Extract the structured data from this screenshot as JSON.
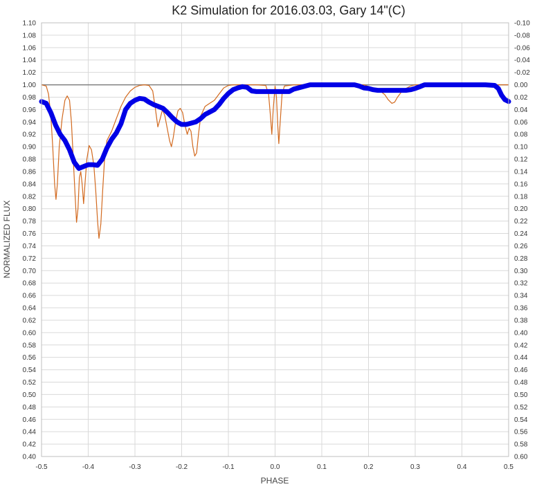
{
  "chart_data": {
    "type": "line",
    "title": "K2 Simulation for 2016.03.03, Gary 14\"(C)",
    "xlabel": "PHASE",
    "ylabel": "NORMALIZED FLUX",
    "xlim": [
      -0.5,
      0.5
    ],
    "ylim": [
      0.4,
      1.1
    ],
    "y2lim": [
      0.6,
      -0.1
    ],
    "x_ticks": [
      -0.5,
      -0.4,
      -0.3,
      -0.2,
      -0.1,
      0.0,
      0.1,
      0.2,
      0.3,
      0.4,
      0.5
    ],
    "x_tick_labels": [
      "-0.5",
      "-0.4",
      "-0.3",
      "-0.2",
      "-0.1",
      "0.0",
      "0.1",
      "0.2",
      "0.3",
      "0.4",
      "0.5"
    ],
    "y_ticks": [
      0.4,
      0.42,
      0.44,
      0.46,
      0.48,
      0.5,
      0.52,
      0.54,
      0.56,
      0.58,
      0.6,
      0.62,
      0.64,
      0.66,
      0.68,
      0.7,
      0.72,
      0.74,
      0.76,
      0.78,
      0.8,
      0.82,
      0.84,
      0.86,
      0.88,
      0.9,
      0.92,
      0.94,
      0.96,
      0.98,
      1.0,
      1.02,
      1.04,
      1.06,
      1.08,
      1.1
    ],
    "y_tick_labels": [
      "0.40",
      "0.42",
      "0.44",
      "0.46",
      "0.48",
      "0.50",
      "0.52",
      "0.54",
      "0.56",
      "0.58",
      "0.60",
      "0.62",
      "0.64",
      "0.66",
      "0.68",
      "0.70",
      "0.72",
      "0.74",
      "0.76",
      "0.78",
      "0.80",
      "0.82",
      "0.84",
      "0.86",
      "0.88",
      "0.90",
      "0.92",
      "0.94",
      "0.96",
      "0.98",
      "1.00",
      "1.02",
      "1.04",
      "1.06",
      "1.08",
      "1.10"
    ],
    "y2_ticks": [
      0.6,
      0.58,
      0.56,
      0.54,
      0.52,
      0.5,
      0.48,
      0.46,
      0.44,
      0.42,
      0.4,
      0.38,
      0.36,
      0.34,
      0.32,
      0.3,
      0.28,
      0.26,
      0.24,
      0.22,
      0.2,
      0.18,
      0.16,
      0.14,
      0.12,
      0.1,
      0.08,
      0.06,
      0.04,
      0.02,
      0.0,
      -0.02,
      -0.04,
      -0.06,
      -0.08,
      -0.1
    ],
    "y2_tick_labels": [
      "0.60",
      "0.58",
      "0.56",
      "0.54",
      "0.52",
      "0.50",
      "0.48",
      "0.46",
      "0.44",
      "0.42",
      "0.40",
      "0.38",
      "0.36",
      "0.34",
      "0.32",
      "0.30",
      "0.28",
      "0.26",
      "0.24",
      "0.22",
      "0.20",
      "0.18",
      "0.16",
      "0.14",
      "0.12",
      "0.10",
      "0.08",
      "0.06",
      "0.04",
      "0.02",
      "0.00",
      "-0.02",
      "-0.04",
      "-0.06",
      "-0.08",
      "-0.10"
    ],
    "grid": {
      "x": true,
      "y": true
    },
    "legend": "none",
    "reference_line": {
      "y": 1.0,
      "color": "#808080"
    },
    "series": [
      {
        "color": "#D2691E",
        "style": "thin-line",
        "points": [
          [
            -0.5,
            1.0
          ],
          [
            -0.49,
            0.998
          ],
          [
            -0.485,
            0.985
          ],
          [
            -0.48,
            0.95
          ],
          [
            -0.476,
            0.9
          ],
          [
            -0.472,
            0.84
          ],
          [
            -0.469,
            0.815
          ],
          [
            -0.466,
            0.84
          ],
          [
            -0.462,
            0.9
          ],
          [
            -0.456,
            0.945
          ],
          [
            -0.45,
            0.975
          ],
          [
            -0.445,
            0.982
          ],
          [
            -0.44,
            0.975
          ],
          [
            -0.436,
            0.94
          ],
          [
            -0.432,
            0.88
          ],
          [
            -0.428,
            0.82
          ],
          [
            -0.425,
            0.778
          ],
          [
            -0.422,
            0.8
          ],
          [
            -0.419,
            0.85
          ],
          [
            -0.416,
            0.86
          ],
          [
            -0.413,
            0.84
          ],
          [
            -0.41,
            0.808
          ],
          [
            -0.407,
            0.84
          ],
          [
            -0.403,
            0.88
          ],
          [
            -0.398,
            0.902
          ],
          [
            -0.393,
            0.895
          ],
          [
            -0.388,
            0.87
          ],
          [
            -0.384,
            0.83
          ],
          [
            -0.38,
            0.78
          ],
          [
            -0.377,
            0.752
          ],
          [
            -0.373,
            0.775
          ],
          [
            -0.369,
            0.83
          ],
          [
            -0.365,
            0.88
          ],
          [
            -0.36,
            0.91
          ],
          [
            -0.35,
            0.925
          ],
          [
            -0.34,
            0.945
          ],
          [
            -0.33,
            0.965
          ],
          [
            -0.32,
            0.98
          ],
          [
            -0.31,
            0.99
          ],
          [
            -0.3,
            0.996
          ],
          [
            -0.29,
            0.999
          ],
          [
            -0.28,
            1.0
          ],
          [
            -0.27,
            0.999
          ],
          [
            -0.262,
            0.99
          ],
          [
            -0.256,
            0.96
          ],
          [
            -0.251,
            0.932
          ],
          [
            -0.246,
            0.945
          ],
          [
            -0.241,
            0.96
          ],
          [
            -0.236,
            0.95
          ],
          [
            -0.231,
            0.93
          ],
          [
            -0.226,
            0.91
          ],
          [
            -0.222,
            0.9
          ],
          [
            -0.218,
            0.915
          ],
          [
            -0.213,
            0.94
          ],
          [
            -0.208,
            0.958
          ],
          [
            -0.203,
            0.962
          ],
          [
            -0.198,
            0.955
          ],
          [
            -0.193,
            0.935
          ],
          [
            -0.188,
            0.92
          ],
          [
            -0.184,
            0.93
          ],
          [
            -0.18,
            0.925
          ],
          [
            -0.176,
            0.9
          ],
          [
            -0.172,
            0.885
          ],
          [
            -0.168,
            0.89
          ],
          [
            -0.164,
            0.92
          ],
          [
            -0.159,
            0.95
          ],
          [
            -0.15,
            0.965
          ],
          [
            -0.14,
            0.97
          ],
          [
            -0.13,
            0.975
          ],
          [
            -0.12,
            0.985
          ],
          [
            -0.11,
            0.995
          ],
          [
            -0.1,
            0.999
          ],
          [
            -0.09,
            1.0
          ],
          [
            -0.06,
            1.0
          ],
          [
            -0.04,
            1.0
          ],
          [
            -0.02,
            0.999
          ],
          [
            -0.014,
            0.985
          ],
          [
            -0.01,
            0.95
          ],
          [
            -0.007,
            0.92
          ],
          [
            -0.004,
            0.96
          ],
          [
            0.0,
            0.998
          ],
          [
            0.003,
            0.98
          ],
          [
            0.006,
            0.93
          ],
          [
            0.008,
            0.905
          ],
          [
            0.011,
            0.94
          ],
          [
            0.015,
            0.985
          ],
          [
            0.02,
            0.998
          ],
          [
            0.03,
            0.999
          ],
          [
            0.04,
            1.0
          ],
          [
            0.1,
            1.0
          ],
          [
            0.15,
            1.0
          ],
          [
            0.19,
            1.0
          ],
          [
            0.205,
            0.996
          ],
          [
            0.215,
            0.994
          ],
          [
            0.225,
            0.99
          ],
          [
            0.235,
            0.984
          ],
          [
            0.242,
            0.976
          ],
          [
            0.25,
            0.97
          ],
          [
            0.256,
            0.972
          ],
          [
            0.262,
            0.98
          ],
          [
            0.27,
            0.988
          ],
          [
            0.28,
            0.994
          ],
          [
            0.29,
            0.998
          ],
          [
            0.3,
            1.0
          ],
          [
            0.5,
            1.0
          ]
        ]
      },
      {
        "color": "#0000E6",
        "style": "thick-line",
        "points": [
          [
            -0.5,
            0.973
          ],
          [
            -0.49,
            0.97
          ],
          [
            -0.48,
            0.955
          ],
          [
            -0.47,
            0.935
          ],
          [
            -0.46,
            0.92
          ],
          [
            -0.45,
            0.91
          ],
          [
            -0.44,
            0.895
          ],
          [
            -0.43,
            0.875
          ],
          [
            -0.42,
            0.865
          ],
          [
            -0.41,
            0.868
          ],
          [
            -0.4,
            0.871
          ],
          [
            -0.39,
            0.871
          ],
          [
            -0.38,
            0.87
          ],
          [
            -0.37,
            0.88
          ],
          [
            -0.36,
            0.898
          ],
          [
            -0.35,
            0.912
          ],
          [
            -0.34,
            0.922
          ],
          [
            -0.33,
            0.937
          ],
          [
            -0.32,
            0.96
          ],
          [
            -0.31,
            0.97
          ],
          [
            -0.3,
            0.975
          ],
          [
            -0.29,
            0.978
          ],
          [
            -0.28,
            0.977
          ],
          [
            -0.27,
            0.972
          ],
          [
            -0.26,
            0.968
          ],
          [
            -0.25,
            0.965
          ],
          [
            -0.24,
            0.962
          ],
          [
            -0.23,
            0.955
          ],
          [
            -0.22,
            0.947
          ],
          [
            -0.21,
            0.94
          ],
          [
            -0.2,
            0.936
          ],
          [
            -0.19,
            0.936
          ],
          [
            -0.18,
            0.938
          ],
          [
            -0.17,
            0.94
          ],
          [
            -0.16,
            0.945
          ],
          [
            -0.15,
            0.952
          ],
          [
            -0.14,
            0.956
          ],
          [
            -0.13,
            0.96
          ],
          [
            -0.12,
            0.968
          ],
          [
            -0.11,
            0.978
          ],
          [
            -0.1,
            0.986
          ],
          [
            -0.09,
            0.992
          ],
          [
            -0.08,
            0.995
          ],
          [
            -0.07,
            0.997
          ],
          [
            -0.06,
            0.996
          ],
          [
            -0.05,
            0.99
          ],
          [
            -0.04,
            0.989
          ],
          [
            -0.02,
            0.989
          ],
          [
            0.0,
            0.989
          ],
          [
            0.02,
            0.989
          ],
          [
            0.03,
            0.989
          ],
          [
            0.04,
            0.993
          ],
          [
            0.055,
            0.996
          ],
          [
            0.065,
            0.998
          ],
          [
            0.075,
            1.0
          ],
          [
            0.1,
            1.0
          ],
          [
            0.15,
            1.0
          ],
          [
            0.17,
            1.0
          ],
          [
            0.18,
            0.998
          ],
          [
            0.19,
            0.995
          ],
          [
            0.2,
            0.994
          ],
          [
            0.21,
            0.992
          ],
          [
            0.22,
            0.991
          ],
          [
            0.25,
            0.991
          ],
          [
            0.28,
            0.991
          ],
          [
            0.29,
            0.992
          ],
          [
            0.3,
            0.994
          ],
          [
            0.31,
            0.997
          ],
          [
            0.32,
            1.0
          ],
          [
            0.35,
            1.0
          ],
          [
            0.4,
            1.0
          ],
          [
            0.45,
            1.0
          ],
          [
            0.47,
            0.999
          ],
          [
            0.478,
            0.994
          ],
          [
            0.485,
            0.983
          ],
          [
            0.492,
            0.976
          ],
          [
            0.5,
            0.973
          ]
        ]
      }
    ]
  }
}
